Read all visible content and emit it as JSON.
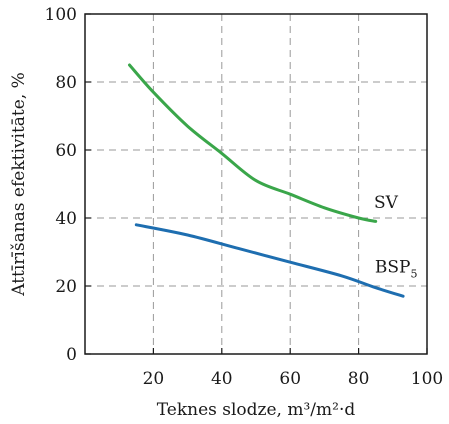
{
  "chart_data": {
    "type": "line",
    "xlabel": "Teknes slodze, m³/m²·d",
    "ylabel": "Attīrīšanas efektivitāte, %",
    "xlim": [
      0,
      100
    ],
    "ylim": [
      0,
      100
    ],
    "xticks": [
      20,
      40,
      60,
      80,
      100
    ],
    "yticks": [
      0,
      20,
      40,
      60,
      80,
      100
    ],
    "grid": true,
    "series": [
      {
        "name": "SV",
        "color": "#3aa64a",
        "x": [
          13,
          20,
          30,
          40,
          50,
          60,
          70,
          80,
          85
        ],
        "y": [
          85,
          77,
          67,
          59,
          51,
          47,
          43,
          40,
          39
        ]
      },
      {
        "name": "BSP",
        "name_subscript": "5",
        "color": "#1e6eb0",
        "x": [
          15,
          30,
          45,
          60,
          75,
          85,
          93
        ],
        "y": [
          38,
          35,
          31,
          27,
          23,
          19.5,
          17
        ]
      }
    ]
  }
}
